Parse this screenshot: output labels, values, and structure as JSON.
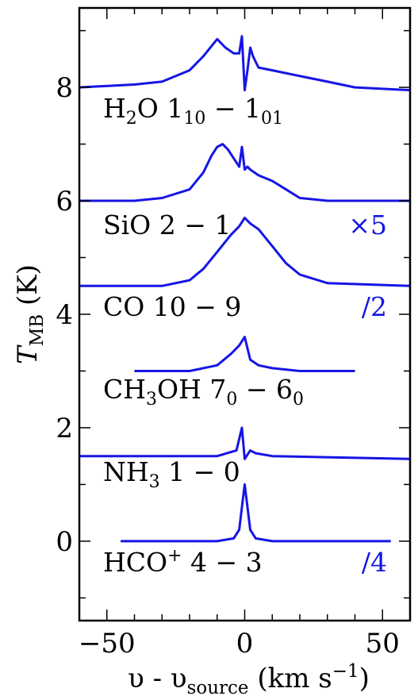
{
  "chart_data": {
    "type": "line",
    "title": "",
    "xlabel": {
      "base": "υ - υ",
      "sub": "source",
      "unit": " (km s",
      "sup": "−1",
      "tail": ")"
    },
    "ylabel": {
      "base": "T",
      "sub": "MB",
      "unit": " (K)"
    },
    "xlim": [
      -60,
      60
    ],
    "ylim": [
      -1.4,
      9.4
    ],
    "xticks": [
      -50,
      0,
      50
    ],
    "xtick_labels": [
      "−50",
      "0",
      "50"
    ],
    "yticks": [
      0,
      2,
      4,
      6,
      8
    ],
    "ytick_labels": [
      "0",
      "2",
      "4",
      "6",
      "8"
    ],
    "grid": false,
    "line_color": "#1515e6",
    "series": [
      {
        "id": "h2o",
        "label_parts": [
          {
            "t": "H"
          },
          {
            "t": "2",
            "s": "sub"
          },
          {
            "t": "O 1"
          },
          {
            "t": "10",
            "s": "sub"
          },
          {
            "t": " − 1"
          },
          {
            "t": "01",
            "s": "sub"
          }
        ],
        "scale": "",
        "x": [
          -60,
          -40,
          -30,
          -20,
          -15,
          -10,
          -7,
          -4,
          -2,
          -1,
          0,
          1,
          2,
          3,
          5,
          10,
          20,
          30,
          40,
          60
        ],
        "y": [
          8.0,
          8.05,
          8.1,
          8.3,
          8.55,
          8.85,
          8.7,
          8.6,
          8.6,
          8.9,
          7.95,
          8.3,
          8.7,
          8.55,
          8.35,
          8.3,
          8.2,
          8.1,
          8.0,
          7.95
        ]
      },
      {
        "id": "sio",
        "label_parts": [
          {
            "t": "SiO 2 − 1"
          }
        ],
        "scale": "×5",
        "x": [
          -60,
          -40,
          -30,
          -20,
          -15,
          -12,
          -10,
          -8,
          -6,
          -4,
          -2,
          -1,
          0,
          1,
          2,
          5,
          10,
          15,
          20,
          30,
          60
        ],
        "y": [
          6.0,
          6.0,
          6.05,
          6.2,
          6.5,
          6.8,
          6.95,
          7.0,
          6.9,
          6.75,
          6.6,
          6.95,
          6.55,
          6.6,
          6.55,
          6.45,
          6.35,
          6.2,
          6.05,
          6.0,
          6.0
        ]
      },
      {
        "id": "co",
        "label_parts": [
          {
            "t": "CO 10 − 9"
          }
        ],
        "scale": "/2",
        "x": [
          -60,
          -30,
          -20,
          -15,
          -10,
          -5,
          -2,
          0,
          2,
          5,
          10,
          15,
          20,
          30,
          60
        ],
        "y": [
          4.5,
          4.5,
          4.6,
          4.8,
          5.1,
          5.4,
          5.55,
          5.7,
          5.6,
          5.5,
          5.2,
          4.9,
          4.7,
          4.55,
          4.5
        ]
      },
      {
        "id": "ch3oh",
        "label_parts": [
          {
            "t": "CH"
          },
          {
            "t": "3",
            "s": "sub"
          },
          {
            "t": "OH 7"
          },
          {
            "t": "0",
            "s": "sub"
          },
          {
            "t": " − 6"
          },
          {
            "t": "0",
            "s": "sub"
          }
        ],
        "scale": "",
        "x": [
          -40,
          -20,
          -10,
          -5,
          -2,
          0,
          2,
          5,
          10,
          20,
          40
        ],
        "y": [
          3.0,
          3.0,
          3.1,
          3.3,
          3.45,
          3.6,
          3.2,
          3.1,
          3.05,
          3.0,
          3.0
        ]
      },
      {
        "id": "nh3",
        "label_parts": [
          {
            "t": "NH"
          },
          {
            "t": "3",
            "s": "sub"
          },
          {
            "t": " 1 − 0"
          }
        ],
        "scale": "",
        "x": [
          -60,
          -10,
          -3,
          -1,
          0,
          2,
          4,
          10,
          60
        ],
        "y": [
          1.5,
          1.5,
          1.6,
          2.0,
          1.45,
          1.6,
          1.55,
          1.5,
          1.45
        ]
      },
      {
        "id": "hco",
        "label_parts": [
          {
            "t": "HCO"
          },
          {
            "t": "+",
            "s": "sup"
          },
          {
            "t": " 4 − 3"
          }
        ],
        "scale": "/4",
        "x": [
          -45,
          -10,
          -4,
          -2,
          -1,
          0,
          1,
          2,
          4,
          10,
          53
        ],
        "y": [
          0.0,
          0.0,
          0.05,
          0.2,
          0.6,
          1.0,
          0.6,
          0.2,
          0.05,
          0.0,
          0.0
        ]
      }
    ]
  }
}
